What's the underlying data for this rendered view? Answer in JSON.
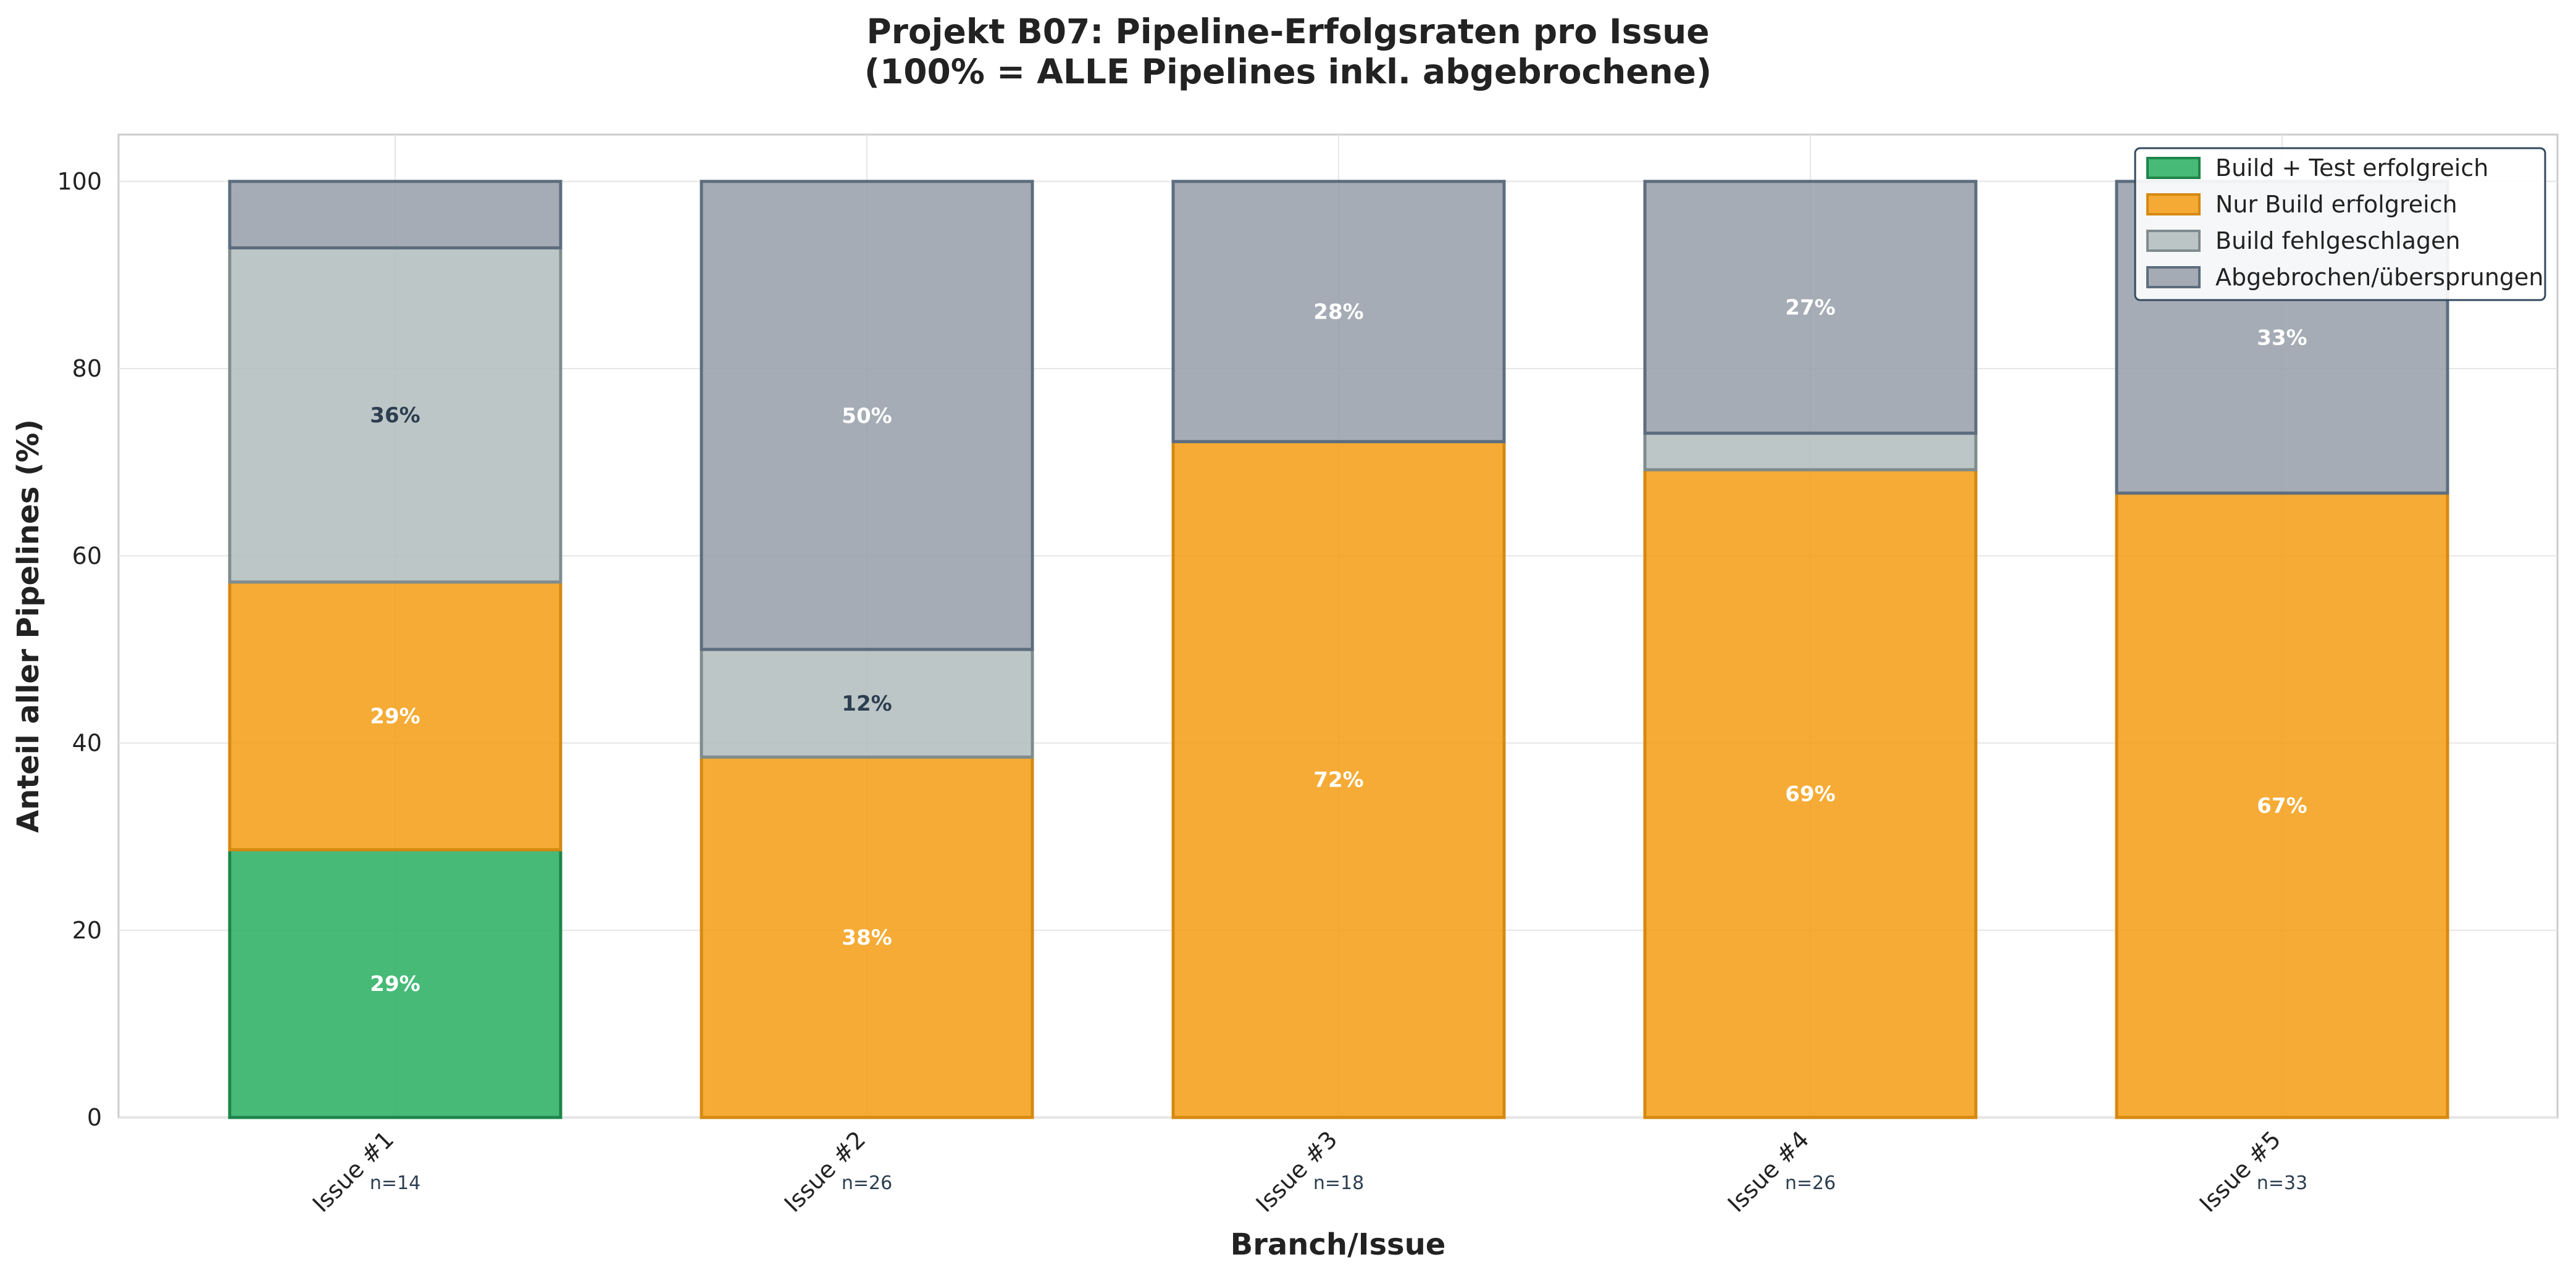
{
  "chart_data": {
    "type": "bar",
    "stacked": true,
    "title": "Projekt B07: Pipeline-Erfolgsraten pro Issue",
    "subtitle": "(100% = ALLE Pipelines inkl. abgebrochene)",
    "xlabel": "Branch/Issue",
    "ylabel": "Anteil aller Pipelines (%)",
    "ylim": [
      0,
      105
    ],
    "yticks": [
      0,
      20,
      40,
      60,
      80,
      100
    ],
    "grid": true,
    "legend_position": "top-right",
    "categories": [
      "Issue #1",
      "Issue #2",
      "Issue #3",
      "Issue #4",
      "Issue #5"
    ],
    "counts": [
      "n=14",
      "n=26",
      "n=18",
      "n=26",
      "n=33"
    ],
    "series": [
      {
        "name": "Build + Test erfolgreich",
        "color": "#27ae60",
        "edge": "#1e8449",
        "label_color": "#ffffff",
        "values": [
          28.6,
          0,
          0,
          0,
          0
        ],
        "labels": [
          "29%",
          "",
          "",
          "",
          ""
        ]
      },
      {
        "name": "Nur Build erfolgreich",
        "color": "#f39c12",
        "edge": "#d68910",
        "label_color": "#ffffff",
        "values": [
          28.6,
          38.5,
          72.2,
          69.2,
          66.7
        ],
        "labels": [
          "29%",
          "38%",
          "72%",
          "69%",
          "67%"
        ]
      },
      {
        "name": "Build fehlgeschlagen",
        "color": "#b1bcbd",
        "edge": "#7f8c8d",
        "label_color": "#2c3e50",
        "values": [
          35.7,
          11.5,
          0,
          3.9,
          0
        ],
        "labels": [
          "36%",
          "12%",
          "",
          "",
          ""
        ]
      },
      {
        "name": "Abgebrochen/übersprungen",
        "color": "#959ea8",
        "edge": "#5d6d7e",
        "label_color": "#ffffff",
        "values": [
          7.1,
          50.0,
          27.8,
          26.9,
          33.3
        ],
        "labels": [
          "",
          "50%",
          "28%",
          "27%",
          "33%"
        ]
      }
    ]
  }
}
